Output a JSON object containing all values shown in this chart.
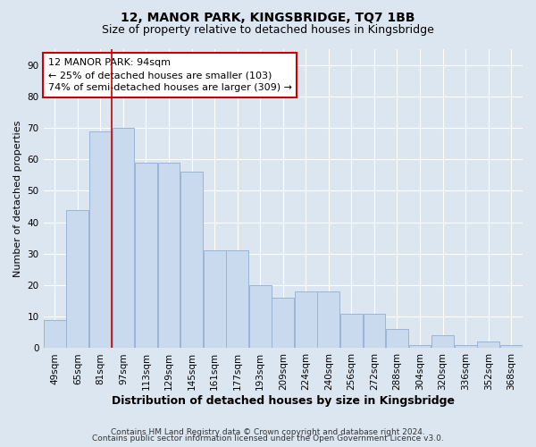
{
  "title": "12, MANOR PARK, KINGSBRIDGE, TQ7 1BB",
  "subtitle": "Size of property relative to detached houses in Kingsbridge",
  "xlabel": "Distribution of detached houses by size in Kingsbridge",
  "ylabel": "Number of detached properties",
  "footnote1": "Contains HM Land Registry data © Crown copyright and database right 2024.",
  "footnote2": "Contains public sector information licensed under the Open Government Licence v3.0.",
  "categories": [
    "49sqm",
    "65sqm",
    "81sqm",
    "97sqm",
    "113sqm",
    "129sqm",
    "145sqm",
    "161sqm",
    "177sqm",
    "193sqm",
    "209sqm",
    "224sqm",
    "240sqm",
    "256sqm",
    "272sqm",
    "288sqm",
    "304sqm",
    "320sqm",
    "336sqm",
    "352sqm",
    "368sqm"
  ],
  "values": [
    9,
    44,
    69,
    70,
    59,
    59,
    56,
    31,
    31,
    20,
    16,
    18,
    18,
    11,
    11,
    6,
    1,
    4,
    1,
    2,
    1
  ],
  "bar_color": "#c9d9ee",
  "bar_edge_color": "#9ab4d4",
  "vline_x": 2.5,
  "vline_color": "#cc0000",
  "annotation_line1": "12 MANOR PARK: 94sqm",
  "annotation_line2": "← 25% of detached houses are smaller (103)",
  "annotation_line3": "74% of semi-detached houses are larger (309) →",
  "annotation_box_color": "#ffffff",
  "annotation_box_edge_color": "#cc0000",
  "ylim": [
    0,
    95
  ],
  "yticks": [
    0,
    10,
    20,
    30,
    40,
    50,
    60,
    70,
    80,
    90
  ],
  "bg_color": "#dce6f1",
  "plot_bg_color": "#dce6f1",
  "grid_color": "#ffffff",
  "title_fontsize": 10,
  "subtitle_fontsize": 9,
  "xlabel_fontsize": 9,
  "ylabel_fontsize": 8,
  "tick_fontsize": 7.5,
  "annotation_fontsize": 8
}
